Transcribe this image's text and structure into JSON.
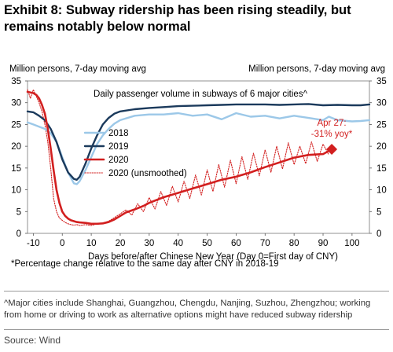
{
  "header": {
    "title": "Exhibit 8: Subway ridership has been rising steadily, but remains notably below normal"
  },
  "chart_data": {
    "type": "line",
    "subtitle": "Daily passenger volume in subways of 6 major cities^",
    "ylabel_left": "Million persons, 7-day moving avg",
    "ylabel_right": "Million persons, 7-day moving avg",
    "xlabel": "Days before/after Chinese New Year (Day 0=First day of CNY)",
    "xlim": [
      -12,
      106
    ],
    "ylim": [
      0,
      35
    ],
    "x_ticks": [
      -10,
      0,
      10,
      20,
      30,
      40,
      50,
      60,
      70,
      80,
      90,
      100
    ],
    "y_ticks": [
      0,
      5,
      10,
      15,
      20,
      25,
      30,
      35
    ],
    "grid": false,
    "legend_position": "left",
    "annotation": {
      "text_line1": "Apr 27:",
      "text_line2": "-31% yoy*",
      "x": 93,
      "y": 19.3
    },
    "series": [
      {
        "name": "2018",
        "color": "#9cc8e8",
        "style": "solid",
        "x": [
          -12,
          -10,
          -8,
          -6,
          -4,
          -2,
          0,
          2,
          4,
          5,
          6,
          8,
          10,
          12,
          14,
          16,
          18,
          20,
          25,
          30,
          35,
          40,
          45,
          50,
          55,
          60,
          65,
          70,
          75,
          80,
          85,
          90,
          92,
          95,
          100,
          103,
          106
        ],
        "y": [
          25.5,
          25.0,
          24.5,
          24.0,
          23.0,
          21.0,
          17.5,
          14.0,
          11.5,
          11.3,
          12.0,
          14.5,
          17.5,
          20.5,
          22.5,
          24.0,
          25.2,
          26.0,
          27.0,
          27.3,
          27.3,
          27.6,
          27.0,
          27.3,
          26.2,
          27.6,
          26.8,
          27.0,
          26.4,
          27.0,
          26.5,
          26.0,
          26.8,
          26.0,
          25.7,
          25.8,
          26.0
        ]
      },
      {
        "name": "2019",
        "color": "#1b3a5c",
        "style": "solid",
        "x": [
          -12,
          -10,
          -8,
          -6,
          -4,
          -2,
          0,
          2,
          4,
          5,
          6,
          8,
          10,
          12,
          14,
          16,
          18,
          20,
          25,
          30,
          35,
          40,
          45,
          50,
          55,
          60,
          65,
          70,
          75,
          80,
          85,
          90,
          95,
          100,
          103,
          106
        ],
        "y": [
          28.0,
          27.8,
          27.0,
          26.0,
          24.0,
          21.0,
          17.0,
          14.0,
          12.5,
          12.3,
          13.0,
          16.0,
          19.5,
          22.5,
          25.0,
          26.5,
          27.5,
          28.0,
          28.5,
          28.8,
          29.0,
          29.2,
          29.3,
          29.4,
          29.5,
          29.6,
          29.6,
          29.6,
          29.5,
          29.6,
          29.7,
          29.4,
          29.5,
          29.4,
          29.4,
          29.6
        ]
      },
      {
        "name": "2020",
        "color": "#d21f1f",
        "style": "solid-thick",
        "x": [
          -12,
          -10,
          -9,
          -8,
          -7,
          -6,
          -5,
          -4,
          -3,
          -2,
          -1,
          0,
          1,
          2,
          3,
          4,
          5,
          6,
          8,
          10,
          12,
          14,
          16,
          18,
          20,
          22,
          25,
          28,
          30,
          35,
          40,
          45,
          50,
          55,
          60,
          65,
          70,
          75,
          80,
          85,
          90,
          93
        ],
        "y": [
          32.5,
          32.2,
          31.8,
          31.0,
          29.5,
          27.5,
          24.0,
          19.5,
          14.5,
          10.0,
          7.0,
          5.0,
          4.0,
          3.4,
          3.0,
          2.8,
          2.6,
          2.5,
          2.4,
          2.2,
          2.2,
          2.3,
          2.6,
          3.2,
          4.0,
          4.8,
          5.5,
          6.3,
          7.0,
          8.3,
          9.3,
          10.3,
          11.3,
          12.3,
          13.0,
          14.0,
          15.2,
          16.3,
          17.4,
          18.0,
          18.2,
          19.3
        ]
      },
      {
        "name": "2020 (unsmoothed)",
        "color": "#d21f1f",
        "style": "dotted",
        "x": [
          -12,
          -11,
          -10,
          -9,
          -8,
          -7,
          -6,
          -5,
          -4,
          -3,
          -2,
          -1,
          0,
          1,
          2,
          3,
          4,
          5,
          6,
          8,
          10,
          12,
          14,
          16,
          18,
          20,
          22,
          24,
          26,
          28,
          30,
          32,
          34,
          36,
          38,
          40,
          42,
          44,
          46,
          48,
          50,
          52,
          54,
          56,
          58,
          60,
          62,
          64,
          66,
          68,
          70,
          72,
          74,
          76,
          78,
          80,
          82,
          84,
          86,
          88,
          90,
          92
        ],
        "y": [
          33.0,
          31.0,
          33.0,
          31.5,
          30.0,
          28.0,
          25.0,
          21.0,
          15.0,
          8.0,
          5.0,
          3.5,
          3.0,
          2.5,
          2.2,
          2.0,
          1.9,
          2.0,
          1.8,
          2.0,
          1.8,
          2.2,
          2.4,
          2.8,
          3.6,
          4.5,
          5.4,
          4.2,
          6.8,
          5.0,
          8.2,
          5.6,
          9.6,
          6.4,
          10.8,
          7.2,
          12.0,
          8.0,
          13.4,
          8.8,
          14.6,
          9.6,
          15.8,
          10.6,
          16.8,
          11.4,
          17.6,
          12.4,
          18.4,
          13.2,
          19.2,
          14.0,
          20.0,
          14.8,
          20.8,
          15.8,
          20.0,
          16.0,
          21.0,
          16.5,
          20.5,
          18.0
        ]
      }
    ]
  },
  "notes": {
    "footnote_star": "*Percentage change relative to the same day after CNY in 2018-19",
    "footnote_caret": "^Major cities include Shanghai, Guangzhou, Chengdu, Nanjing, Suzhou, Zhengzhou; working from home or driving to work as alternative options might have reduced subway ridership",
    "source": "Source: Wind"
  }
}
